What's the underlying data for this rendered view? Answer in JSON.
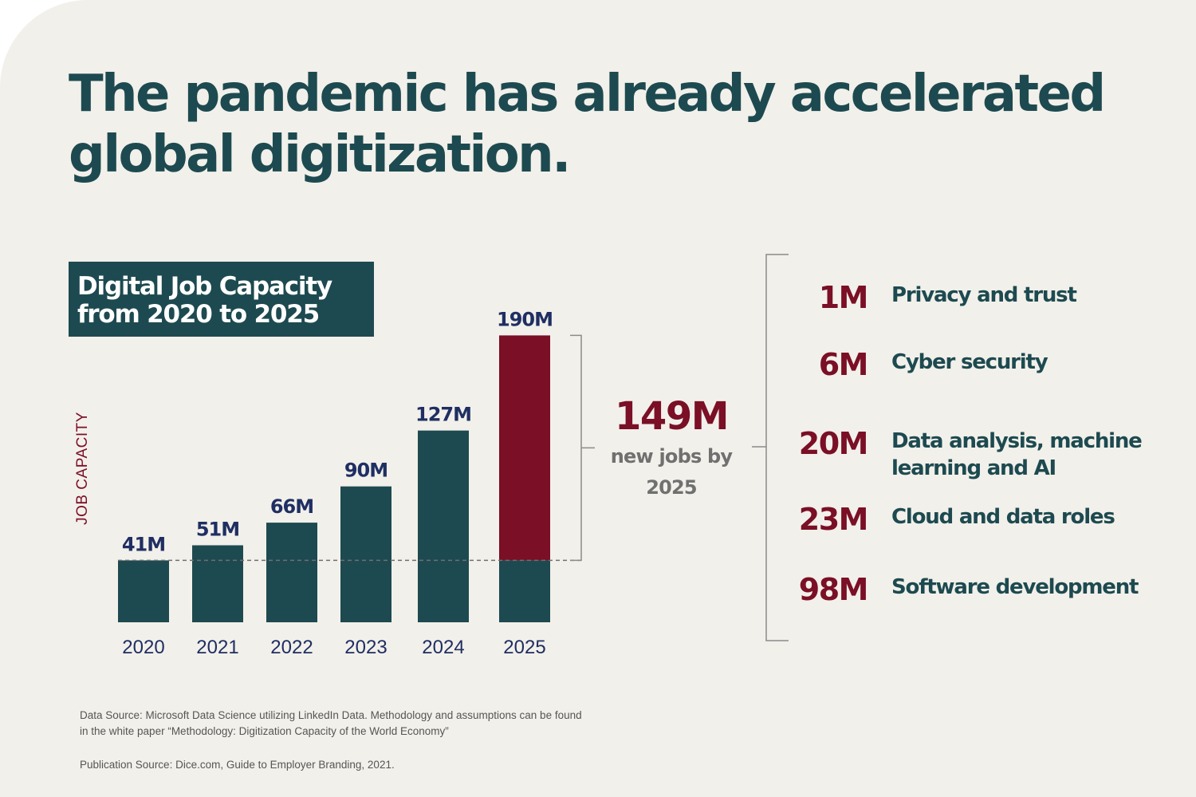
{
  "headline": [
    "The pandemic has already accelerated",
    "global digitization."
  ],
  "chart_title": [
    "Digital Job Capacity",
    "from 2020 to 2025"
  ],
  "colors": {
    "background": "#f2f0ea",
    "teal": "#1d4a50",
    "maroon": "#7a0f26",
    "navy": "#1f2f63",
    "gray": "#707070"
  },
  "chart_data": {
    "type": "bar",
    "title": "Digital Job Capacity from 2020 to 2025",
    "ylabel": "JOB CAPACITY",
    "xlabel": "",
    "categories": [
      "2020",
      "2021",
      "2022",
      "2023",
      "2024",
      "2025"
    ],
    "values": [
      41,
      51,
      66,
      90,
      127,
      190
    ],
    "value_labels": [
      "41M",
      "51M",
      "66M",
      "90M",
      "127M",
      "190M"
    ],
    "baseline_value": 41,
    "highlight": {
      "category": "2025",
      "increase": 149,
      "color": "maroon"
    },
    "units": "M",
    "grid": false,
    "legend": "none"
  },
  "total": {
    "value": "149M",
    "caption": [
      "new jobs by",
      "2025"
    ]
  },
  "breakdown": [
    {
      "value": "1M",
      "label": "Privacy and trust"
    },
    {
      "value": "6M",
      "label": "Cyber security"
    },
    {
      "value": "20M",
      "label": "Data analysis, machine learning and AI"
    },
    {
      "value": "23M",
      "label": "Cloud and data roles"
    },
    {
      "value": "98M",
      "label": "Software development"
    }
  ],
  "sources": {
    "data": [
      "Data Source: Microsoft Data Science utilizing LinkedIn Data. Methodology and assumptions can be found",
      "in the white paper “Methodology: Digitization Capacity of the World Economy”"
    ],
    "publication": "Publication Source: Dice.com, Guide to Employer Branding, 2021."
  }
}
